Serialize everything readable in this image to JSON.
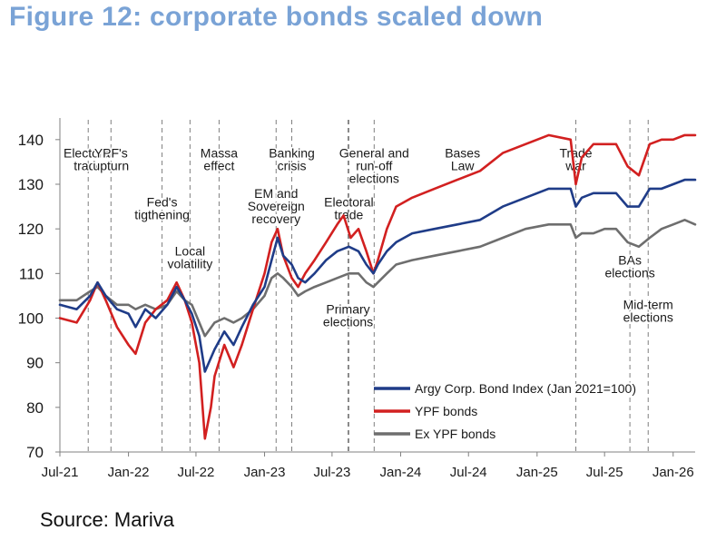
{
  "header": {
    "title": "Figure 12: corporate bonds scaled down"
  },
  "footer": {
    "source": "Source: Mariva"
  },
  "chart_data": {
    "type": "line",
    "title": "Figure 12: corporate bonds scaled down",
    "xlabel": "",
    "ylabel": "",
    "ylim": [
      70,
      142
    ],
    "y_ticks": [
      70,
      80,
      90,
      100,
      110,
      120,
      130,
      140
    ],
    "x_range": [
      "2021-07",
      "2026-03"
    ],
    "x_ticks": [
      {
        "date": "2021-07",
        "label": "Jul-21"
      },
      {
        "date": "2022-01",
        "label": "Jan-22"
      },
      {
        "date": "2022-07",
        "label": "Jul-22"
      },
      {
        "date": "2023-01",
        "label": "Jan-23"
      },
      {
        "date": "2023-07",
        "label": "Jul-23"
      },
      {
        "date": "2024-01",
        "label": "Jan-24"
      },
      {
        "date": "2024-07",
        "label": "Jul-24"
      },
      {
        "date": "2025-01",
        "label": "Jan-25"
      },
      {
        "date": "2025-07",
        "label": "Jul-25"
      },
      {
        "date": "2026-01",
        "label": "Jan-26"
      }
    ],
    "grid": false,
    "legend_position": "bottom-right",
    "series": [
      {
        "name": "Argy Corp. Bond Index (Jan 2021=100)",
        "color": "#1f3c88",
        "points": [
          [
            "2021-07-01",
            103
          ],
          [
            "2021-08-15",
            102
          ],
          [
            "2021-09-20",
            105
          ],
          [
            "2021-10-10",
            108
          ],
          [
            "2021-11-01",
            105
          ],
          [
            "2021-12-01",
            102
          ],
          [
            "2022-01-01",
            101
          ],
          [
            "2022-01-20",
            98
          ],
          [
            "2022-02-15",
            102
          ],
          [
            "2022-03-15",
            100
          ],
          [
            "2022-04-15",
            103
          ],
          [
            "2022-05-10",
            107
          ],
          [
            "2022-06-01",
            104
          ],
          [
            "2022-06-20",
            101
          ],
          [
            "2022-07-10",
            96
          ],
          [
            "2022-07-25",
            88
          ],
          [
            "2022-08-20",
            93
          ],
          [
            "2022-09-15",
            97
          ],
          [
            "2022-10-10",
            94
          ],
          [
            "2022-11-01",
            98
          ],
          [
            "2022-12-01",
            103
          ],
          [
            "2023-01-01",
            107
          ],
          [
            "2023-01-20",
            113
          ],
          [
            "2023-02-05",
            118
          ],
          [
            "2023-02-20",
            114
          ],
          [
            "2023-03-15",
            112
          ],
          [
            "2023-04-01",
            109
          ],
          [
            "2023-04-20",
            108
          ],
          [
            "2023-05-15",
            110
          ],
          [
            "2023-06-15",
            113
          ],
          [
            "2023-07-15",
            115
          ],
          [
            "2023-08-15",
            116
          ],
          [
            "2023-09-10",
            115
          ],
          [
            "2023-10-01",
            112
          ],
          [
            "2023-10-20",
            110
          ],
          [
            "2023-11-01",
            112
          ],
          [
            "2023-11-25",
            115
          ],
          [
            "2023-12-20",
            117
          ],
          [
            "2024-02-01",
            119
          ],
          [
            "2024-04-01",
            120
          ],
          [
            "2024-06-01",
            121
          ],
          [
            "2024-08-01",
            122
          ],
          [
            "2024-10-01",
            125
          ],
          [
            "2024-12-01",
            127
          ],
          [
            "2025-02-01",
            129
          ],
          [
            "2025-04-01",
            129
          ],
          [
            "2025-04-15",
            125
          ],
          [
            "2025-05-01",
            127
          ],
          [
            "2025-06-01",
            128
          ],
          [
            "2025-07-01",
            128
          ],
          [
            "2025-08-01",
            128
          ],
          [
            "2025-09-01",
            125
          ],
          [
            "2025-10-01",
            125
          ],
          [
            "2025-10-30",
            129
          ],
          [
            "2025-12-01",
            129
          ],
          [
            "2026-01-01",
            130
          ],
          [
            "2026-02-01",
            131
          ],
          [
            "2026-03-01",
            131
          ]
        ]
      },
      {
        "name": "YPF bonds",
        "color": "#d22020",
        "points": [
          [
            "2021-07-01",
            100
          ],
          [
            "2021-08-15",
            99
          ],
          [
            "2021-09-20",
            104
          ],
          [
            "2021-10-10",
            108
          ],
          [
            "2021-11-01",
            104
          ],
          [
            "2021-12-01",
            98
          ],
          [
            "2022-01-01",
            94
          ],
          [
            "2022-01-20",
            92
          ],
          [
            "2022-02-15",
            99
          ],
          [
            "2022-03-15",
            102
          ],
          [
            "2022-04-15",
            104
          ],
          [
            "2022-05-10",
            108
          ],
          [
            "2022-06-01",
            104
          ],
          [
            "2022-06-20",
            99
          ],
          [
            "2022-07-10",
            90
          ],
          [
            "2022-07-25",
            73
          ],
          [
            "2022-08-10",
            80
          ],
          [
            "2022-08-20",
            87
          ],
          [
            "2022-09-15",
            94
          ],
          [
            "2022-10-10",
            89
          ],
          [
            "2022-11-01",
            94
          ],
          [
            "2022-12-01",
            102
          ],
          [
            "2023-01-01",
            110
          ],
          [
            "2023-01-20",
            117
          ],
          [
            "2023-02-05",
            120
          ],
          [
            "2023-02-20",
            114
          ],
          [
            "2023-03-15",
            109
          ],
          [
            "2023-04-01",
            107
          ],
          [
            "2023-04-20",
            110
          ],
          [
            "2023-05-15",
            113
          ],
          [
            "2023-06-15",
            117
          ],
          [
            "2023-07-15",
            121
          ],
          [
            "2023-08-01",
            123
          ],
          [
            "2023-08-20",
            118
          ],
          [
            "2023-09-10",
            120
          ],
          [
            "2023-10-01",
            115
          ],
          [
            "2023-10-20",
            110
          ],
          [
            "2023-11-01",
            113
          ],
          [
            "2023-11-25",
            120
          ],
          [
            "2023-12-20",
            125
          ],
          [
            "2024-02-01",
            127
          ],
          [
            "2024-04-01",
            129
          ],
          [
            "2024-06-01",
            131
          ],
          [
            "2024-08-01",
            133
          ],
          [
            "2024-10-01",
            137
          ],
          [
            "2024-12-01",
            139
          ],
          [
            "2025-02-01",
            141
          ],
          [
            "2025-04-01",
            140
          ],
          [
            "2025-04-15",
            130
          ],
          [
            "2025-05-01",
            136
          ],
          [
            "2025-06-01",
            139
          ],
          [
            "2025-07-01",
            139
          ],
          [
            "2025-08-01",
            139
          ],
          [
            "2025-09-01",
            134
          ],
          [
            "2025-10-01",
            132
          ],
          [
            "2025-10-30",
            139
          ],
          [
            "2025-12-01",
            140
          ],
          [
            "2026-01-01",
            140
          ],
          [
            "2026-02-01",
            141
          ],
          [
            "2026-03-01",
            141
          ]
        ]
      },
      {
        "name": "Ex YPF bonds",
        "color": "#6e6e6e",
        "points": [
          [
            "2021-07-01",
            104
          ],
          [
            "2021-08-15",
            104
          ],
          [
            "2021-09-20",
            106
          ],
          [
            "2021-10-10",
            107
          ],
          [
            "2021-11-01",
            105
          ],
          [
            "2021-12-01",
            103
          ],
          [
            "2022-01-01",
            103
          ],
          [
            "2022-01-20",
            102
          ],
          [
            "2022-02-15",
            103
          ],
          [
            "2022-03-15",
            102
          ],
          [
            "2022-04-15",
            103
          ],
          [
            "2022-05-10",
            106
          ],
          [
            "2022-06-01",
            104
          ],
          [
            "2022-06-20",
            103
          ],
          [
            "2022-07-10",
            99
          ],
          [
            "2022-07-25",
            96
          ],
          [
            "2022-08-20",
            99
          ],
          [
            "2022-09-15",
            100
          ],
          [
            "2022-10-10",
            99
          ],
          [
            "2022-11-01",
            100
          ],
          [
            "2022-12-01",
            102
          ],
          [
            "2023-01-01",
            105
          ],
          [
            "2023-01-20",
            109
          ],
          [
            "2023-02-05",
            110
          ],
          [
            "2023-02-20",
            109
          ],
          [
            "2023-03-15",
            107
          ],
          [
            "2023-04-01",
            105
          ],
          [
            "2023-04-20",
            106
          ],
          [
            "2023-05-15",
            107
          ],
          [
            "2023-06-15",
            108
          ],
          [
            "2023-07-15",
            109
          ],
          [
            "2023-08-15",
            110
          ],
          [
            "2023-09-10",
            110
          ],
          [
            "2023-10-01",
            108
          ],
          [
            "2023-10-20",
            107
          ],
          [
            "2023-11-01",
            108
          ],
          [
            "2023-11-25",
            110
          ],
          [
            "2023-12-20",
            112
          ],
          [
            "2024-02-01",
            113
          ],
          [
            "2024-04-01",
            114
          ],
          [
            "2024-06-01",
            115
          ],
          [
            "2024-08-01",
            116
          ],
          [
            "2024-10-01",
            118
          ],
          [
            "2024-12-01",
            120
          ],
          [
            "2025-02-01",
            121
          ],
          [
            "2025-04-01",
            121
          ],
          [
            "2025-04-15",
            118
          ],
          [
            "2025-05-01",
            119
          ],
          [
            "2025-06-01",
            119
          ],
          [
            "2025-07-01",
            120
          ],
          [
            "2025-08-01",
            120
          ],
          [
            "2025-09-01",
            117
          ],
          [
            "2025-10-01",
            116
          ],
          [
            "2025-10-30",
            118
          ],
          [
            "2025-12-01",
            120
          ],
          [
            "2026-01-01",
            121
          ],
          [
            "2026-02-01",
            122
          ],
          [
            "2026-03-01",
            121
          ]
        ]
      }
    ],
    "events": [
      {
        "date": "2021-09-15",
        "lines": [
          "Electoral",
          "trade"
        ],
        "label_y": 136
      },
      {
        "date": "2021-11-15",
        "lines": [
          "YPF's",
          "upturn"
        ],
        "label_y": 136
      },
      {
        "date": "2022-04-01",
        "lines": [
          "Fed's",
          "tigthening"
        ],
        "label_y": 125
      },
      {
        "date": "2022-06-15",
        "lines": [
          "Local",
          "volatility"
        ],
        "label_y": 114
      },
      {
        "date": "2022-09-01",
        "lines": [
          "Massa",
          "effect"
        ],
        "label_y": 136
      },
      {
        "date": "2023-02-01",
        "lines": [
          "EM and",
          "Sovereign",
          "recovery"
        ],
        "label_y": 127
      },
      {
        "date": "2023-03-15",
        "lines": [
          "Banking",
          "crisis"
        ],
        "label_y": 136
      },
      {
        "date": "2023-08-15",
        "lines": [
          "Electoral",
          "trade"
        ],
        "label_y": 125
      },
      {
        "date": "2023-10-22",
        "lines": [
          "General and",
          "run-off",
          "elections"
        ],
        "label_y": 136
      },
      {
        "date": "2023-08-13",
        "lines": [
          "Primary",
          "elections"
        ],
        "label_y": 101
      },
      {
        "date": "2025-04-15",
        "lines": [
          "Trade",
          "war"
        ],
        "label_y": 136
      },
      {
        "date": "2025-09-07",
        "lines": [
          "BAs",
          "elections"
        ],
        "label_y": 112
      },
      {
        "date": "2025-10-26",
        "lines": [
          "Mid-term",
          "elections"
        ],
        "label_y": 102
      }
    ],
    "annotations": [
      {
        "lines": [
          "Bases",
          "Law"
        ],
        "date": "2024-06-15",
        "label_y": 136
      }
    ]
  }
}
